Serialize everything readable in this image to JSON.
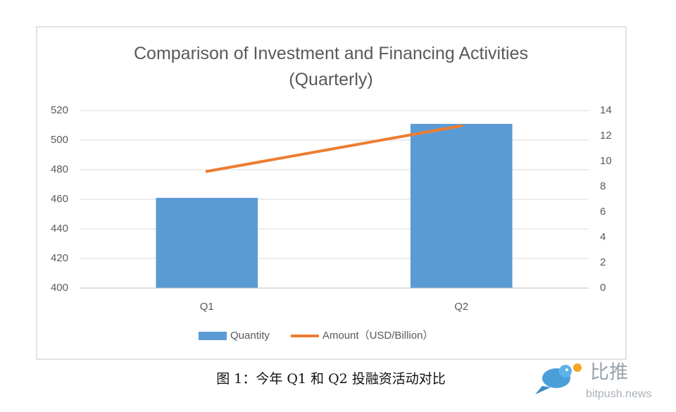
{
  "chart_data": {
    "type": "bar",
    "title": "Comparison of Investment and Financing Activities (Quarterly)",
    "categories": [
      "Q1",
      "Q2"
    ],
    "series": [
      {
        "name": "Quantity",
        "type": "bar",
        "color": "#5b9bd5",
        "values": [
          461,
          511
        ]
      },
      {
        "name": "Amount（USD/Billion）",
        "type": "line",
        "axis": "y2",
        "color": "#ed7d31",
        "values": [
          9.2,
          12.8
        ]
      }
    ],
    "ylim": [
      400,
      520
    ],
    "yticks": [
      400,
      420,
      440,
      460,
      480,
      500,
      520
    ],
    "y2lim": [
      0,
      14
    ],
    "y2ticks": [
      0,
      2,
      4,
      6,
      8,
      10,
      12,
      14
    ],
    "grid": true,
    "legend": "bottom"
  },
  "caption": "图 1：今年 Q1 和 Q2 投融资活动对比",
  "watermark": {
    "logo_text": "比推",
    "url": "bitpush.news"
  }
}
